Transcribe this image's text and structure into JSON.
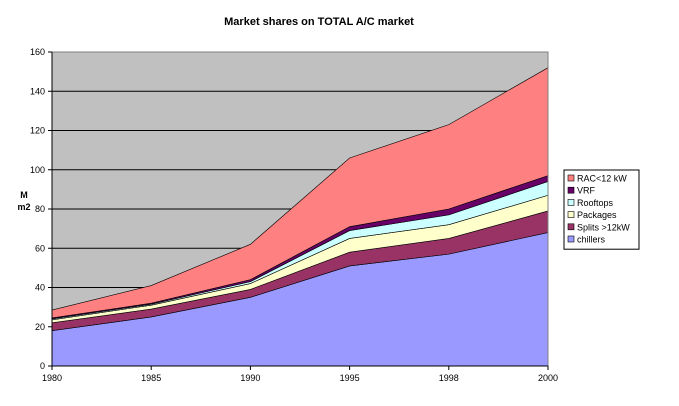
{
  "chart_data": {
    "type": "area",
    "stacked": true,
    "title": "Market shares on TOTAL A/C market",
    "xlabel": "",
    "ylabel": [
      "M",
      "m2"
    ],
    "x": [
      "1980",
      "1985",
      "1990",
      "1995",
      "1998",
      "2000"
    ],
    "ylim": [
      0,
      160
    ],
    "yticks": [
      0,
      20,
      40,
      60,
      80,
      100,
      120,
      140,
      160
    ],
    "grid": true,
    "legend_position": "right",
    "series": [
      {
        "name": "chillers",
        "color": "#9999ff",
        "values": [
          18,
          25,
          35,
          51,
          57,
          68
        ]
      },
      {
        "name": "Splits >12kW",
        "color": "#993366",
        "values": [
          4,
          4,
          4,
          7,
          8,
          11
        ]
      },
      {
        "name": "Packages",
        "color": "#ffffcc",
        "values": [
          1.5,
          2,
          3,
          7,
          7,
          8
        ]
      },
      {
        "name": "Rooftops",
        "color": "#ccffff",
        "values": [
          0.5,
          0.5,
          1,
          4,
          5,
          7
        ]
      },
      {
        "name": "VRF",
        "color": "#660066",
        "values": [
          0.5,
          0.5,
          1,
          2,
          3,
          3
        ]
      },
      {
        "name": "RAC<12 kW",
        "color": "#ff8080",
        "values": [
          4,
          9,
          18,
          35,
          43,
          55
        ]
      }
    ],
    "plot_background": "#c0c0c0"
  }
}
